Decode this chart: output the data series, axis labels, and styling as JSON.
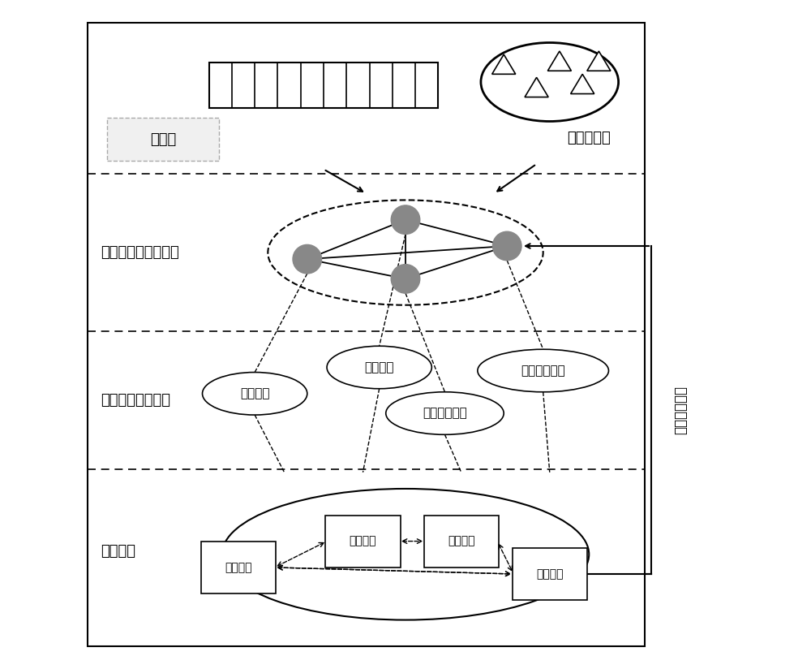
{
  "bg_color": "#ffffff",
  "border_color": "#000000",
  "dashed_color": "#555555",
  "node_color": "#888888",
  "label_renwulian": "任务链",
  "label_weixing": "卫星资源群",
  "label_gaoceng": "高层（超启发式算）",
  "label_diceng": "低层（算法集合）",
  "label_wenti": "问题求解",
  "label_jisuan": "计算结果反馈",
  "label_yichuansuanfa": "遗传算法",
  "label_motuisun": "模拟退火算法",
  "label_jinyisuansuo": "禁忌搜索算法",
  "label_yiqunsuanfa": "蚂群算法",
  "label_wentiqiujie": "问题求解",
  "fig_width": 10.0,
  "fig_height": 8.08
}
